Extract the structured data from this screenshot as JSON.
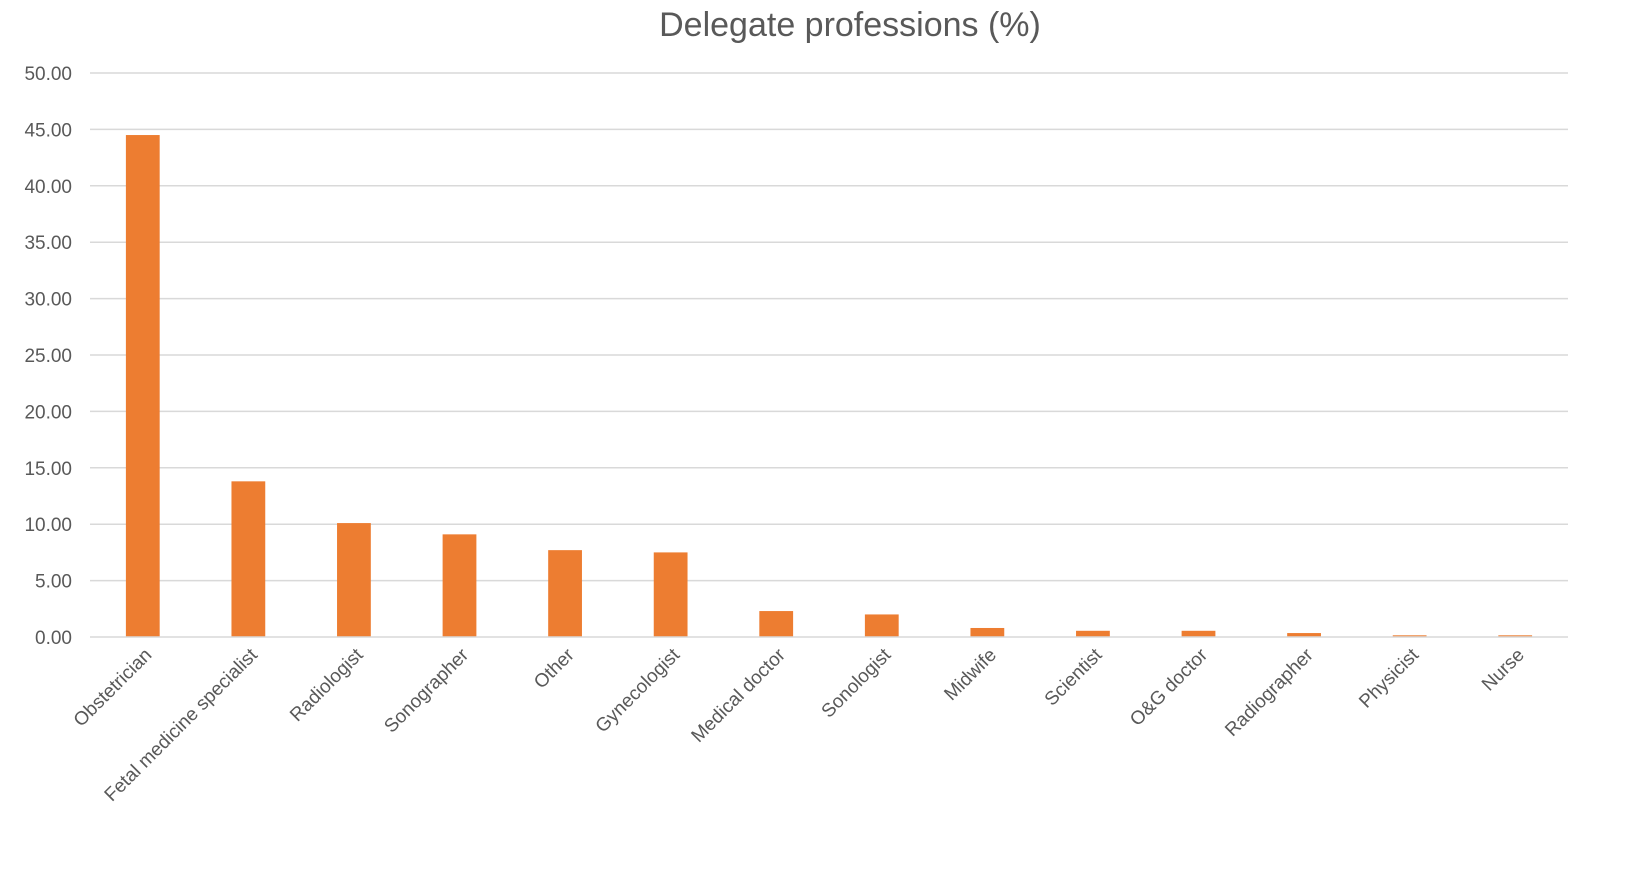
{
  "chart_data": {
    "type": "bar",
    "title": "Delegate professions (%)",
    "xlabel": "",
    "ylabel": "",
    "ylim": [
      0,
      50
    ],
    "y_ticks": [
      "0.00",
      "5.00",
      "10.00",
      "15.00",
      "20.00",
      "25.00",
      "30.00",
      "35.00",
      "40.00",
      "45.00",
      "50.00"
    ],
    "y_tick_values": [
      0,
      5,
      10,
      15,
      20,
      25,
      30,
      35,
      40,
      45,
      50
    ],
    "grid": true,
    "legend": "none",
    "categories": [
      "Obstetrician",
      "Fetal medicine specialist",
      "Radiologist",
      "Sonographer",
      "Other",
      "Gynecologist",
      "Medical doctor",
      "Sonologist",
      "Midwife",
      "Scientist",
      "O&G doctor",
      "Radiographer",
      "Physicist",
      "Nurse"
    ],
    "values": [
      44.5,
      13.8,
      10.1,
      9.1,
      7.7,
      7.5,
      2.3,
      2.0,
      0.8,
      0.55,
      0.55,
      0.35,
      0.15,
      0.15
    ],
    "bar_color": "#ED7D31"
  }
}
